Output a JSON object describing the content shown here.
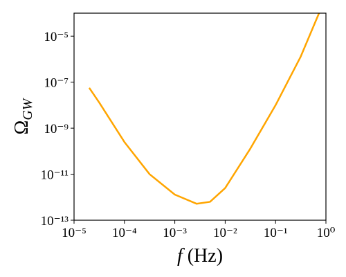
{
  "chart_data": {
    "type": "line",
    "x_label": "f (Hz)",
    "y_label": "ΩGW",
    "log_x": true,
    "log_y": true,
    "x": [
      2e-05,
      3.16e-05,
      0.0001,
      0.000316,
      0.001,
      0.0027,
      0.005,
      0.01,
      0.0316,
      0.1,
      0.316,
      0.73
    ],
    "series": [
      {
        "name": "ΩGW",
        "color": "#ffa500",
        "values": [
          5.7e-08,
          1.3e-08,
          2.5e-10,
          1e-11,
          1.3e-12,
          5.2e-13,
          6.3e-13,
          2.5e-12,
          1.3e-10,
          1e-08,
          1.3e-06,
          0.0001
        ]
      }
    ],
    "xlim": [
      1e-05,
      1
    ],
    "ylim": [
      1e-13,
      0.0001
    ],
    "xticks": [
      {
        "value": 1e-05,
        "label": "10⁻⁵"
      },
      {
        "value": 0.0001,
        "label": "10⁻⁴"
      },
      {
        "value": 0.001,
        "label": "10⁻³"
      },
      {
        "value": 0.01,
        "label": "10⁻²"
      },
      {
        "value": 0.1,
        "label": "10⁻¹"
      },
      {
        "value": 1,
        "label": "10⁰"
      }
    ],
    "yticks": [
      {
        "value": 1e-13,
        "label": "10⁻¹³"
      },
      {
        "value": 1e-11,
        "label": "10⁻¹¹"
      },
      {
        "value": 1e-09,
        "label": "10⁻⁹"
      },
      {
        "value": 1e-07,
        "label": "10⁻⁷"
      },
      {
        "value": 1e-05,
        "label": "10⁻⁵"
      }
    ],
    "grid": false
  }
}
